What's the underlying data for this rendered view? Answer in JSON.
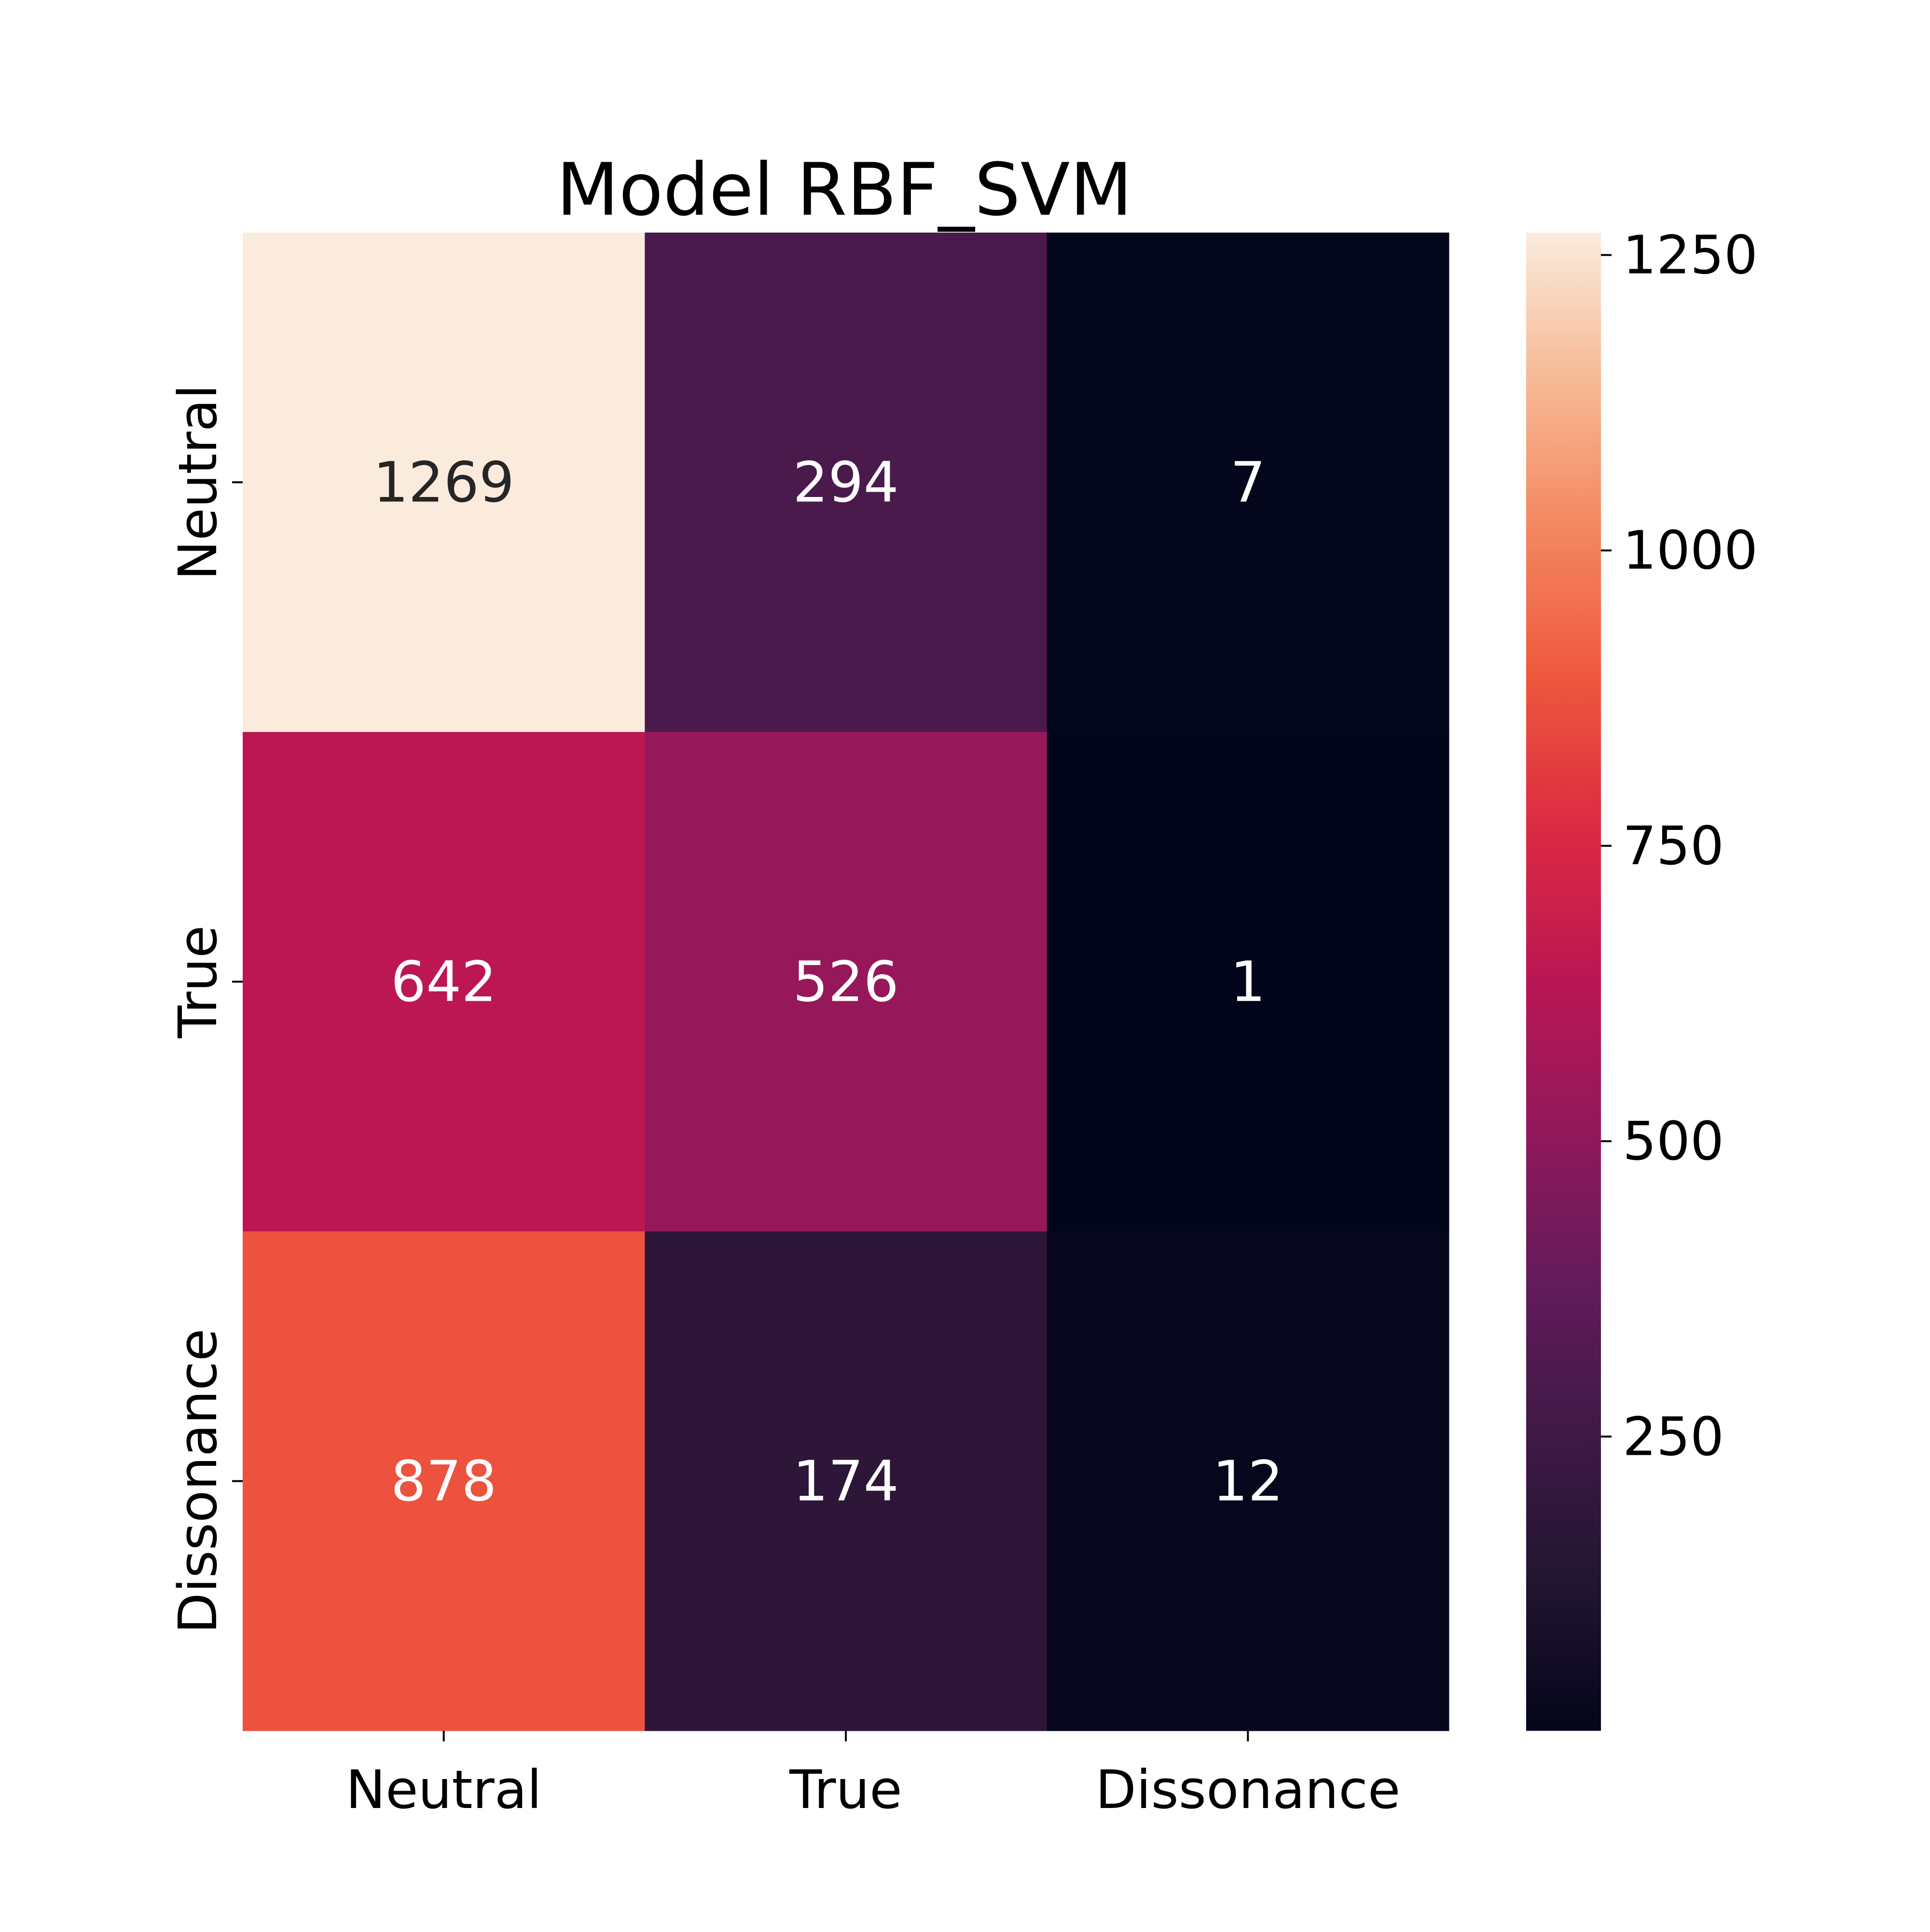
{
  "chart_data": {
    "type": "heatmap",
    "title": "Model RBF_SVM",
    "xlabel": "",
    "ylabel": "",
    "x_categories": [
      "Neutral",
      "True",
      "Dissonance"
    ],
    "y_categories": [
      "Neutral",
      "True",
      "Dissonance"
    ],
    "values": [
      [
        1269,
        294,
        7
      ],
      [
        642,
        526,
        1
      ],
      [
        878,
        174,
        12
      ]
    ],
    "colorbar": {
      "range": [
        1,
        1269
      ],
      "ticks": [
        250,
        500,
        750,
        1000,
        1250
      ],
      "colormap": "rocket"
    },
    "annotations": true,
    "grid": false
  },
  "colors": {
    "annotation_dark": "#262626",
    "annotation_light": "#ffffff",
    "axis": "#000000"
  }
}
